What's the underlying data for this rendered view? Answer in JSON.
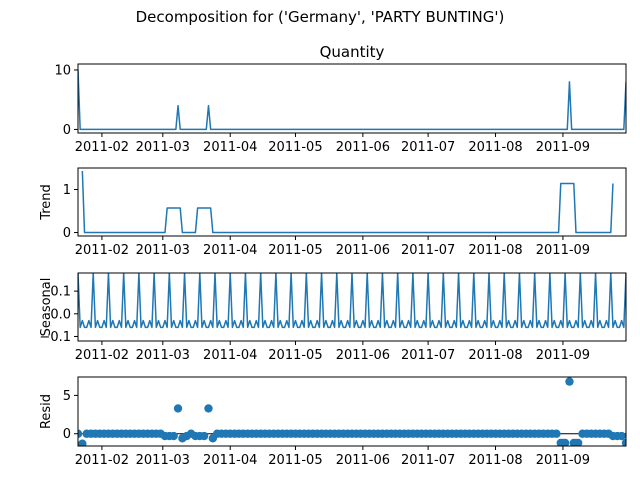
{
  "chart_data": {
    "type": "line",
    "suptitle": "Decomposition for ('Germany', 'PARTY BUNTING')",
    "x_tick_labels": [
      "2011-02",
      "2011-03",
      "2011-04",
      "2011-05",
      "2011-06",
      "2011-07",
      "2011-08",
      "2011-09"
    ],
    "x_tick_dates": [
      "2011-02-01",
      "2011-03-01",
      "2011-04-01",
      "2011-05-01",
      "2011-06-01",
      "2011-07-01",
      "2011-08-01",
      "2011-09-01"
    ],
    "x_range": [
      "2011-01-21",
      "2011-09-30"
    ],
    "color": "#1f77b4",
    "panels": [
      {
        "kind": "line",
        "title": "Quantity",
        "ylabel": "",
        "ylim": [
          -0.6,
          11
        ],
        "yticks": [
          0,
          10
        ],
        "series": [
          {
            "x": "2011-01-21",
            "y": 10
          },
          {
            "x": "2011-01-22",
            "y": 0
          },
          {
            "x": "2011-03-07",
            "y": 0
          },
          {
            "x": "2011-03-08",
            "y": 4
          },
          {
            "x": "2011-03-09",
            "y": 0
          },
          {
            "x": "2011-03-21",
            "y": 0
          },
          {
            "x": "2011-03-22",
            "y": 4
          },
          {
            "x": "2011-03-23",
            "y": 0
          },
          {
            "x": "2011-09-03",
            "y": 0
          },
          {
            "x": "2011-09-04",
            "y": 8
          },
          {
            "x": "2011-09-05",
            "y": 0
          },
          {
            "x": "2011-09-29",
            "y": 0
          },
          {
            "x": "2011-09-30",
            "y": 8
          }
        ]
      },
      {
        "kind": "line",
        "title": "",
        "ylabel": "Trend",
        "ylim": [
          -0.08,
          1.5
        ],
        "yticks": [
          0,
          1
        ],
        "series": [
          {
            "x": "2011-01-23",
            "y": 1.43
          },
          {
            "x": "2011-01-24",
            "y": 0
          },
          {
            "x": "2011-03-02",
            "y": 0
          },
          {
            "x": "2011-03-03",
            "y": 0.57
          },
          {
            "x": "2011-03-09",
            "y": 0.57
          },
          {
            "x": "2011-03-10",
            "y": 0
          },
          {
            "x": "2011-03-16",
            "y": 0
          },
          {
            "x": "2011-03-17",
            "y": 0.57
          },
          {
            "x": "2011-03-23",
            "y": 0.57
          },
          {
            "x": "2011-03-24",
            "y": 0
          },
          {
            "x": "2011-08-30",
            "y": 0
          },
          {
            "x": "2011-08-31",
            "y": 1.14
          },
          {
            "x": "2011-09-06",
            "y": 1.14
          },
          {
            "x": "2011-09-07",
            "y": 0
          },
          {
            "x": "2011-09-23",
            "y": 0
          },
          {
            "x": "2011-09-24",
            "y": 1.14
          }
        ]
      },
      {
        "kind": "seasonal",
        "title": "",
        "ylabel": "Seasonal",
        "ylim": [
          -0.12,
          0.18
        ],
        "yticks": [
          0.1,
          0.0,
          -0.1
        ],
        "ytick_labels": [
          "0.1",
          "0.0",
          "−0.1"
        ],
        "period_days": 7,
        "pattern": [
          0.18,
          -0.06,
          -0.03,
          -0.06,
          -0.06,
          -0.03,
          -0.06
        ],
        "start": "2011-01-21",
        "end": "2011-09-30"
      },
      {
        "kind": "scatter",
        "title": "",
        "ylabel": "Resid",
        "ylim": [
          -1.6,
          7.4
        ],
        "yticks": [
          0,
          5
        ],
        "baseline": 0,
        "default_value": 0,
        "base_step_days": 2,
        "overrides": [
          {
            "x": "2011-01-23",
            "y": -1.3
          },
          {
            "x": "2011-03-08",
            "y": 3.3
          },
          {
            "x": "2011-03-22",
            "y": 3.3
          },
          {
            "x": "2011-09-04",
            "y": 6.8
          },
          {
            "x": "2011-03-02",
            "y": -0.3
          },
          {
            "x": "2011-03-04",
            "y": -0.3
          },
          {
            "x": "2011-03-06",
            "y": -0.3
          },
          {
            "x": "2011-03-10",
            "y": -0.6
          },
          {
            "x": "2011-03-12",
            "y": -0.3
          },
          {
            "x": "2011-03-16",
            "y": -0.3
          },
          {
            "x": "2011-03-18",
            "y": -0.3
          },
          {
            "x": "2011-03-20",
            "y": -0.3
          },
          {
            "x": "2011-03-24",
            "y": -0.6
          },
          {
            "x": "2011-08-31",
            "y": -1.2
          },
          {
            "x": "2011-09-01",
            "y": -1.2
          },
          {
            "x": "2011-09-02",
            "y": -1.2
          },
          {
            "x": "2011-09-06",
            "y": -1.2
          },
          {
            "x": "2011-09-07",
            "y": -1.2
          },
          {
            "x": "2011-09-08",
            "y": -1.2
          },
          {
            "x": "2011-09-24",
            "y": -0.3
          },
          {
            "x": "2011-09-26",
            "y": -0.3
          },
          {
            "x": "2011-09-28",
            "y": -0.3
          },
          {
            "x": "2011-09-30",
            "y": -1.2
          }
        ]
      }
    ]
  }
}
